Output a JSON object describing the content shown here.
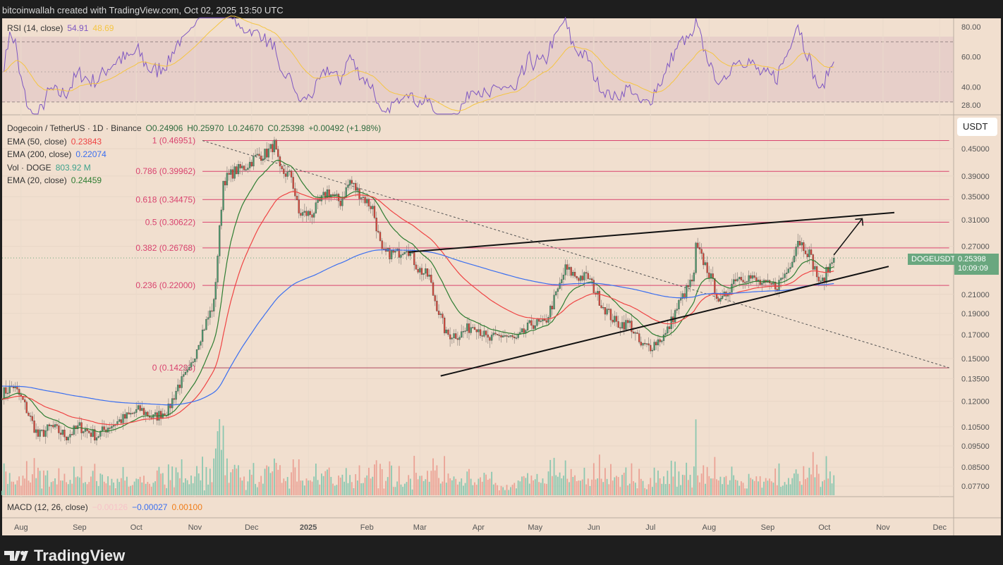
{
  "header": {
    "attribution": "bitcoinwallah created with TradingView.com, Oct 02, 2025 13:50 UTC"
  },
  "rsi": {
    "label": "RSI (14, close)",
    "value": "54.91",
    "ma": "48.69",
    "ticks": [
      "80.00",
      "60.00",
      "40.00",
      "28.00"
    ],
    "tick_values": [
      80,
      60,
      40,
      28
    ],
    "colors": {
      "line": "#7e57c2",
      "ma": "#f5c542"
    }
  },
  "legend": {
    "symbol": "Dogecoin / TetherUS · 1D · Binance",
    "open": "O0.24906",
    "high": "H0.25970",
    "low": "L0.24670",
    "close": "C0.25398",
    "change": "+0.00492 (+1.98%)",
    "ema50_label": "EMA (50, close)",
    "ema50": "0.23843",
    "ema200_label": "EMA (200, close)",
    "ema200": "0.22074",
    "vol_label": "Vol · DOGE",
    "vol": "803.92 M",
    "ema20_label": "EMA (20, close)",
    "ema20": "0.24459"
  },
  "macd": {
    "label": "MACD (12, 26, close)",
    "hist": "−0.00126",
    "macd": "−0.00027",
    "signal": "0.00100"
  },
  "currency_button": "USDT",
  "price_tag": {
    "symbol": "DOGEUSDT",
    "price": "0.25398",
    "countdown": "10:09:09"
  },
  "colors": {
    "up": "#4f9a6e",
    "down": "#d8493c",
    "ema20": "#2e7d32",
    "ema50": "#ef4444",
    "ema200": "#3b6ff0",
    "fib": "#d9436f",
    "bg": "#f1dfcf"
  },
  "footer": {
    "brand": "TradingView"
  },
  "chart_data": {
    "type": "candlestick",
    "scale": "log",
    "ylim": [
      0.072,
      0.55
    ],
    "y_ticks": [
      "0.45000",
      "0.39000",
      "0.35000",
      "0.31000",
      "0.27000",
      "0.21000",
      "0.19000",
      "0.17000",
      "0.15000",
      "0.13500",
      "0.12000",
      "0.10500",
      "0.09500",
      "0.08500",
      "0.07700"
    ],
    "y_tick_values": [
      0.45,
      0.39,
      0.35,
      0.31,
      0.27,
      0.21,
      0.19,
      0.17,
      0.15,
      0.135,
      0.12,
      0.105,
      0.095,
      0.085,
      0.077
    ],
    "x_ticks": [
      "Aug",
      "Sep",
      "Oct",
      "Nov",
      "Dec",
      "2025",
      "Feb",
      "Mar",
      "Apr",
      "May",
      "Jun",
      "Jul",
      "Aug",
      "Sep",
      "Oct",
      "Nov",
      "Dec"
    ],
    "x_tick_days": [
      10,
      41,
      71,
      102,
      132,
      162,
      193,
      221,
      252,
      282,
      313,
      343,
      374,
      405,
      435,
      466,
      496
    ],
    "fib_levels": [
      {
        "label": "1 (0.46951)",
        "price": 0.46951
      },
      {
        "label": "0.786 (0.39962)",
        "price": 0.39962
      },
      {
        "label": "0.618 (0.34475)",
        "price": 0.34475
      },
      {
        "label": "0.5 (0.30622)",
        "price": 0.30622
      },
      {
        "label": "0.382 (0.26768)",
        "price": 0.26768
      },
      {
        "label": "0.236 (0.22000)",
        "price": 0.22
      },
      {
        "label": "0 (0.14293)",
        "price": 0.14293
      }
    ],
    "fib_range_days": [
      106,
      501
    ],
    "trendlines": {
      "upper": [
        [
          215,
          0.262
        ],
        [
          472,
          0.322
        ]
      ],
      "lower": [
        [
          232,
          0.137
        ],
        [
          469,
          0.243
        ]
      ],
      "diagonal_dashed": [
        [
          106,
          0.4695
        ],
        [
          501,
          0.143
        ]
      ],
      "arrow": [
        [
          440,
          0.258
        ],
        [
          455,
          0.312
        ]
      ]
    },
    "price_path": [
      [
        0,
        0.125
      ],
      [
        6,
        0.13
      ],
      [
        11,
        0.12
      ],
      [
        19,
        0.1
      ],
      [
        26,
        0.105
      ],
      [
        34,
        0.1
      ],
      [
        41,
        0.105
      ],
      [
        50,
        0.1
      ],
      [
        56,
        0.105
      ],
      [
        65,
        0.11
      ],
      [
        73,
        0.115
      ],
      [
        80,
        0.11
      ],
      [
        88,
        0.115
      ],
      [
        93,
        0.13
      ],
      [
        99,
        0.14
      ],
      [
        104,
        0.165
      ],
      [
        112,
        0.2
      ],
      [
        117,
        0.38
      ],
      [
        123,
        0.4
      ],
      [
        129,
        0.41
      ],
      [
        134,
        0.43
      ],
      [
        140,
        0.44
      ],
      [
        144,
        0.46
      ],
      [
        147,
        0.4
      ],
      [
        153,
        0.39
      ],
      [
        157,
        0.32
      ],
      [
        164,
        0.32
      ],
      [
        172,
        0.36
      ],
      [
        179,
        0.34
      ],
      [
        184,
        0.38
      ],
      [
        188,
        0.36
      ],
      [
        196,
        0.33
      ],
      [
        201,
        0.26
      ],
      [
        209,
        0.26
      ],
      [
        214,
        0.27
      ],
      [
        220,
        0.24
      ],
      [
        226,
        0.23
      ],
      [
        228,
        0.21
      ],
      [
        235,
        0.17
      ],
      [
        242,
        0.17
      ],
      [
        250,
        0.18
      ],
      [
        257,
        0.165
      ],
      [
        265,
        0.17
      ],
      [
        272,
        0.165
      ],
      [
        280,
        0.18
      ],
      [
        287,
        0.18
      ],
      [
        295,
        0.22
      ],
      [
        298,
        0.24
      ],
      [
        304,
        0.23
      ],
      [
        310,
        0.23
      ],
      [
        317,
        0.2
      ],
      [
        325,
        0.18
      ],
      [
        332,
        0.18
      ],
      [
        338,
        0.16
      ],
      [
        343,
        0.16
      ],
      [
        351,
        0.17
      ],
      [
        358,
        0.2
      ],
      [
        366,
        0.23
      ],
      [
        367,
        0.27
      ],
      [
        373,
        0.24
      ],
      [
        380,
        0.2
      ],
      [
        388,
        0.23
      ],
      [
        395,
        0.23
      ],
      [
        403,
        0.22
      ],
      [
        410,
        0.22
      ],
      [
        416,
        0.24
      ],
      [
        421,
        0.28
      ],
      [
        427,
        0.26
      ],
      [
        433,
        0.22
      ],
      [
        436,
        0.235
      ],
      [
        440,
        0.25398
      ]
    ]
  }
}
